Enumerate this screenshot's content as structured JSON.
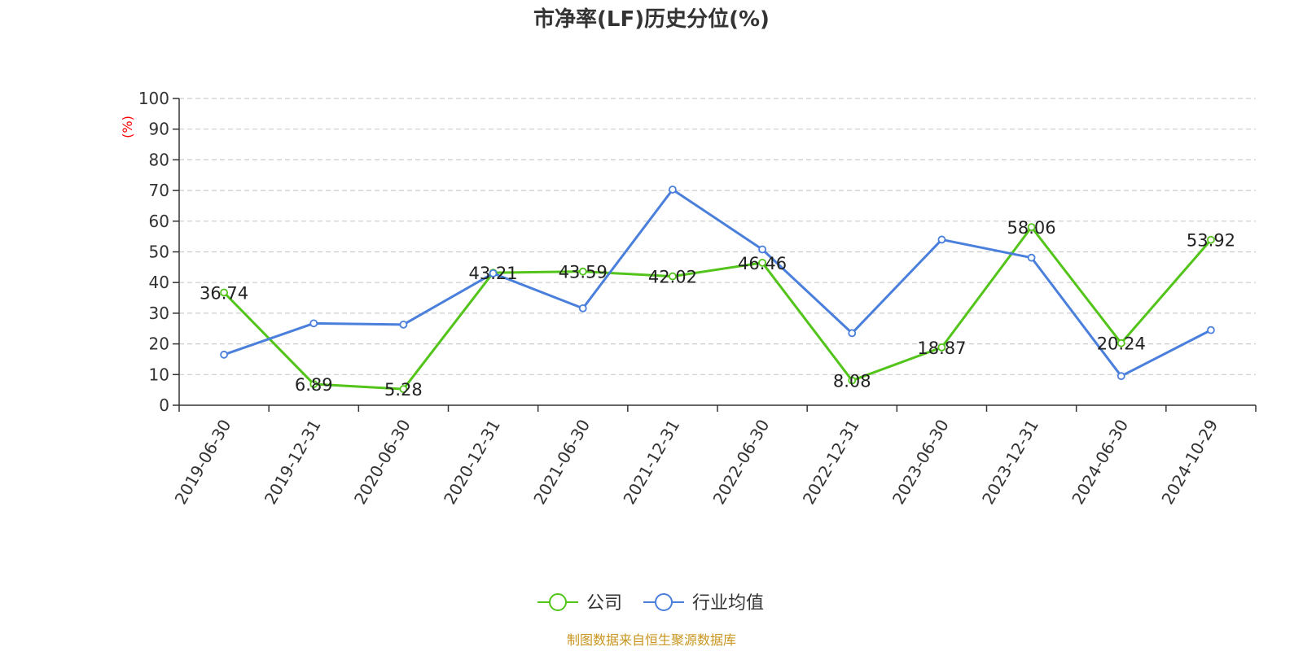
{
  "chart_data": {
    "type": "line",
    "title": "市净率(LF)历史分位(%)",
    "ylabel": "(%)",
    "ylim": [
      0,
      100
    ],
    "yticks": [
      0,
      10,
      20,
      30,
      40,
      50,
      60,
      70,
      80,
      90,
      100
    ],
    "grid": true,
    "legend_position": "bottom-center",
    "categories": [
      "2019-06-30",
      "2019-12-31",
      "2020-06-30",
      "2020-12-31",
      "2021-06-30",
      "2021-12-31",
      "2022-06-30",
      "2022-12-31",
      "2023-06-30",
      "2023-12-31",
      "2024-06-30",
      "2024-10-29"
    ],
    "series": [
      {
        "name": "公司",
        "color": "#52c41a",
        "values": [
          36.74,
          6.89,
          5.28,
          43.21,
          43.59,
          42.02,
          46.46,
          8.08,
          18.87,
          58.06,
          20.24,
          53.92
        ],
        "labels": [
          "36.74",
          "6.89",
          "5.28",
          "43.21",
          "43.59",
          "42.02",
          "46.46",
          "8.08",
          "18.87",
          "58.06",
          "20.24",
          "53.92"
        ]
      },
      {
        "name": "行业均值",
        "color": "#4a7fdc",
        "values": [
          16.5,
          26.7,
          26.3,
          43.0,
          31.6,
          70.3,
          50.8,
          23.5,
          54.0,
          48.1,
          9.5,
          24.5
        ]
      }
    ]
  },
  "source_text": "制图数据来自恒生聚源数据库",
  "colors": {
    "ylabel": "#ff0000",
    "source": "#c8961e",
    "grid": "#cccccc",
    "axis": "#333333"
  }
}
